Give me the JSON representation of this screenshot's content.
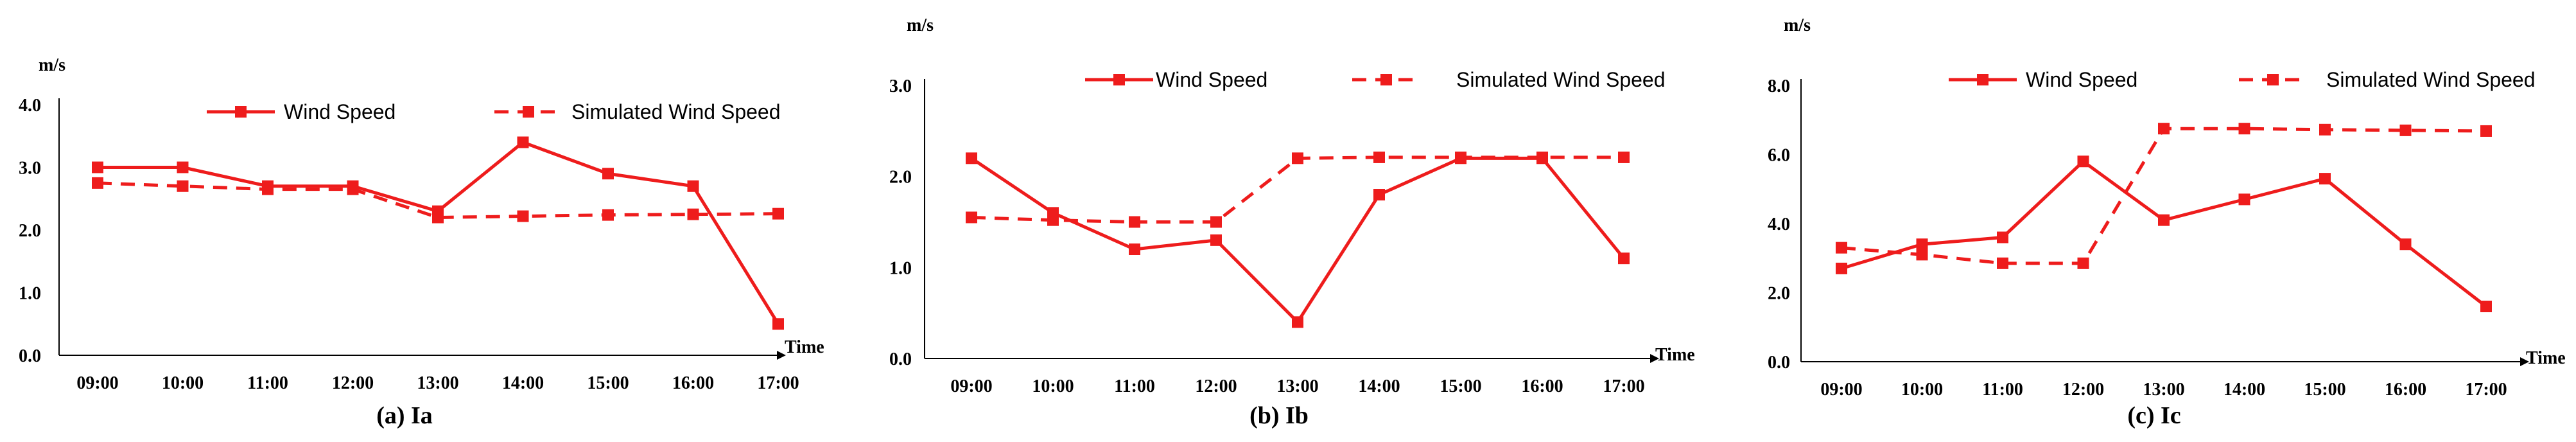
{
  "chart_data": [
    {
      "type": "line",
      "caption": "(a) Ia",
      "ylabel": "m/s",
      "xlabel": "Time",
      "categories": [
        "09:00",
        "10:00",
        "11:00",
        "12:00",
        "13:00",
        "14:00",
        "15:00",
        "16:00",
        "17:00"
      ],
      "ylim": [
        0,
        4.0
      ],
      "yticks": [
        "0.0",
        "1.0",
        "2.0",
        "3.0",
        "4.0"
      ],
      "series": [
        {
          "name": "Wind Speed",
          "style": "solid",
          "values": [
            3.0,
            3.0,
            2.7,
            2.7,
            2.3,
            3.4,
            2.9,
            2.7,
            0.5
          ]
        },
        {
          "name": "Simulated Wind Speed",
          "style": "dashed",
          "values": [
            2.75,
            2.7,
            2.65,
            2.65,
            2.2,
            2.22,
            2.24,
            2.25,
            2.26
          ]
        }
      ]
    },
    {
      "type": "line",
      "caption": "(b) Ib",
      "ylabel": "m/s",
      "xlabel": "Time",
      "categories": [
        "09:00",
        "10:00",
        "11:00",
        "12:00",
        "13:00",
        "14:00",
        "15:00",
        "16:00",
        "17:00"
      ],
      "ylim": [
        0,
        3.0
      ],
      "yticks": [
        "0.0",
        "1.0",
        "2.0",
        "3.0"
      ],
      "series": [
        {
          "name": "Wind Speed",
          "style": "solid",
          "values": [
            2.2,
            1.6,
            1.2,
            1.3,
            0.4,
            1.8,
            2.2,
            2.2,
            1.1
          ]
        },
        {
          "name": "Simulated Wind Speed",
          "style": "dashed",
          "values": [
            1.55,
            1.52,
            1.5,
            1.5,
            2.2,
            2.21,
            2.21,
            2.21,
            2.21
          ]
        }
      ]
    },
    {
      "type": "line",
      "caption": "(c) Ic",
      "ylabel": "m/s",
      "xlabel": "Time",
      "categories": [
        "09:00",
        "10:00",
        "11:00",
        "12:00",
        "13:00",
        "14:00",
        "15:00",
        "16:00",
        "17:00"
      ],
      "ylim": [
        0,
        8.0
      ],
      "yticks": [
        "0.0",
        "2.0",
        "4.0",
        "6.0",
        "8.0"
      ],
      "series": [
        {
          "name": "Wind Speed",
          "style": "solid",
          "values": [
            2.7,
            3.4,
            3.6,
            5.8,
            4.1,
            4.7,
            5.3,
            3.4,
            1.6
          ]
        },
        {
          "name": "Simulated Wind Speed",
          "style": "dashed",
          "values": [
            3.3,
            3.1,
            2.85,
            2.85,
            6.75,
            6.75,
            6.72,
            6.7,
            6.68
          ]
        }
      ]
    }
  ],
  "colors": {
    "series": "#ee1c1c",
    "axis": "#000000"
  }
}
